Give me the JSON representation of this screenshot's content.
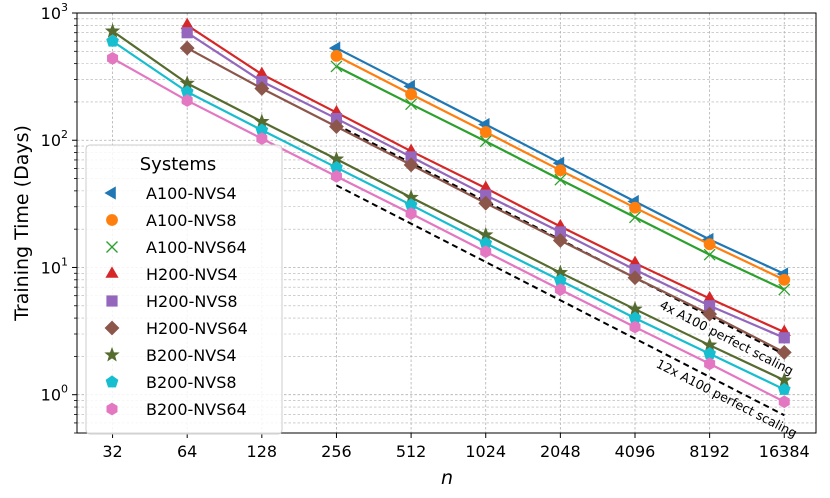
{
  "chart_data": {
    "type": "line",
    "xscale": "log2",
    "yscale": "log10",
    "xlabel": "n",
    "ylabel": "Training Time (Days)",
    "x_ticks": [
      32,
      64,
      128,
      256,
      512,
      1024,
      2048,
      4096,
      8192,
      16384
    ],
    "x_tick_labels": [
      "32",
      "64",
      "128",
      "256",
      "512",
      "1024",
      "2048",
      "4096",
      "8192",
      "16384"
    ],
    "xlim": [
      23,
      22000
    ],
    "ylim": [
      0.5,
      1000
    ],
    "y_ticks": [
      1,
      10,
      100,
      1000
    ],
    "y_tick_labels": [
      {
        "base": "10",
        "exp": "0"
      },
      {
        "base": "10",
        "exp": "1"
      },
      {
        "base": "10",
        "exp": "2"
      },
      {
        "base": "10",
        "exp": "3"
      }
    ],
    "grid": true,
    "legend_title": "Systems",
    "legend_position": "center-left",
    "series": [
      {
        "name": "A100-NVS4",
        "color": "#1f77b4",
        "marker": "triangle-left",
        "x": [
          256,
          512,
          1024,
          2048,
          4096,
          8192,
          16384
        ],
        "values": [
          530,
          265,
          133,
          66,
          33,
          16.6,
          8.9
        ]
      },
      {
        "name": "A100-NVS8",
        "color": "#ff7f0e",
        "marker": "circle",
        "x": [
          256,
          512,
          1024,
          2048,
          4096,
          8192,
          16384
        ],
        "values": [
          460,
          230,
          116,
          58,
          29.5,
          15.2,
          8.0
        ]
      },
      {
        "name": "A100-NVS64",
        "color": "#2ca02c",
        "marker": "x",
        "x": [
          256,
          512,
          1024,
          2048,
          4096,
          8192,
          16384
        ],
        "values": [
          380,
          192,
          98,
          49,
          24.8,
          12.6,
          6.7
        ]
      },
      {
        "name": "H200-NVS4",
        "color": "#d62728",
        "marker": "triangle-up",
        "x": [
          64,
          128,
          256,
          512,
          1024,
          2048,
          4096,
          8192,
          16384
        ],
        "values": [
          800,
          330,
          165,
          82,
          42,
          21,
          10.8,
          5.7,
          3.1
        ]
      },
      {
        "name": "H200-NVS8",
        "color": "#9467bd",
        "marker": "square",
        "x": [
          64,
          128,
          256,
          512,
          1024,
          2048,
          4096,
          8192,
          16384
        ],
        "values": [
          700,
          290,
          148,
          74,
          37,
          19,
          9.6,
          5.0,
          2.8
        ]
      },
      {
        "name": "H200-NVS64",
        "color": "#8c564b",
        "marker": "diamond",
        "x": [
          64,
          128,
          256,
          512,
          1024,
          2048,
          4096,
          8192,
          16384
        ],
        "values": [
          530,
          255,
          128,
          64,
          32,
          16.3,
          8.3,
          4.3,
          2.15
        ]
      },
      {
        "name": "B200-NVS4",
        "color": "#556b2f",
        "marker": "star",
        "x": [
          32,
          64,
          128,
          256,
          512,
          1024,
          2048,
          4096,
          8192,
          16384
        ],
        "values": [
          720,
          280,
          140,
          71,
          35.5,
          18,
          9.1,
          4.7,
          2.45,
          1.3
        ]
      },
      {
        "name": "B200-NVS8",
        "color": "#17becf",
        "marker": "pentagon",
        "x": [
          32,
          64,
          128,
          256,
          512,
          1024,
          2048,
          4096,
          8192,
          16384
        ],
        "values": [
          600,
          240,
          120,
          61,
          31,
          15.5,
          7.9,
          4.0,
          2.1,
          1.1
        ]
      },
      {
        "name": "B200-NVS64",
        "color": "#e377c2",
        "marker": "hexagon",
        "x": [
          32,
          64,
          128,
          256,
          512,
          1024,
          2048,
          4096,
          8192,
          16384
        ],
        "values": [
          440,
          205,
          103,
          52,
          26.5,
          13.3,
          6.7,
          3.4,
          1.75,
          0.88
        ]
      }
    ],
    "reference_lines": [
      {
        "label": "4x A100 perfect scaling",
        "color": "#000000",
        "style": "dashed",
        "x": [
          256,
          16384
        ],
        "values": [
          132.5,
          2.07
        ]
      },
      {
        "label": "12x A100 perfect scaling",
        "color": "#000000",
        "style": "dashed",
        "x": [
          256,
          16384
        ],
        "values": [
          44.2,
          0.69
        ]
      }
    ]
  }
}
